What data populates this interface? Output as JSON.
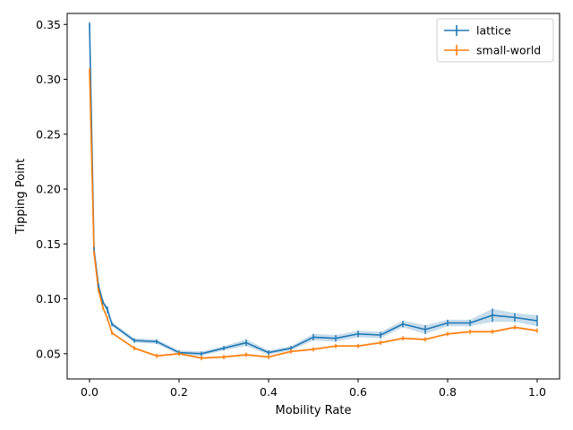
{
  "chart_data": {
    "type": "line",
    "xlabel": "Mobility Rate",
    "ylabel": "Tipping Point",
    "xlim": [
      -0.05,
      1.05
    ],
    "ylim": [
      0.027,
      0.36
    ],
    "xticks": [
      0.0,
      0.2,
      0.4,
      0.6,
      0.8,
      1.0
    ],
    "xtick_labels": [
      "0.0",
      "0.2",
      "0.4",
      "0.6",
      "0.8",
      "1.0"
    ],
    "yticks": [
      0.05,
      0.1,
      0.15,
      0.2,
      0.25,
      0.3,
      0.35
    ],
    "ytick_labels": [
      "0.05",
      "0.10",
      "0.15",
      "0.20",
      "0.25",
      "0.30",
      "0.35"
    ],
    "grid": false,
    "legend": "top-right",
    "x": [
      0.0,
      0.01,
      0.02,
      0.03,
      0.04,
      0.05,
      0.1,
      0.15,
      0.2,
      0.25,
      0.3,
      0.35,
      0.4,
      0.45,
      0.5,
      0.55,
      0.6,
      0.65,
      0.7,
      0.75,
      0.8,
      0.85,
      0.9,
      0.95,
      1.0
    ],
    "series": [
      {
        "name": "lattice",
        "color": "#1f77b4",
        "values": [
          0.35,
          0.145,
          0.112,
          0.097,
          0.09,
          0.077,
          0.062,
          0.061,
          0.051,
          0.05,
          0.055,
          0.06,
          0.051,
          0.055,
          0.065,
          0.064,
          0.068,
          0.067,
          0.077,
          0.072,
          0.078,
          0.078,
          0.085,
          0.083,
          0.08
        ],
        "errors": [
          0.0,
          0.001,
          0.001,
          0.001,
          0.003,
          0.002,
          0.002,
          0.002,
          0.002,
          0.002,
          0.002,
          0.003,
          0.002,
          0.002,
          0.003,
          0.003,
          0.003,
          0.003,
          0.003,
          0.004,
          0.003,
          0.003,
          0.006,
          0.004,
          0.005
        ]
      },
      {
        "name": "small-world",
        "color": "#ff7f0e",
        "values": [
          0.308,
          0.142,
          0.108,
          0.092,
          0.082,
          0.069,
          0.055,
          0.048,
          0.05,
          0.046,
          0.047,
          0.049,
          0.047,
          0.052,
          0.054,
          0.057,
          0.057,
          0.06,
          0.064,
          0.063,
          0.068,
          0.07,
          0.07,
          0.074,
          0.071
        ],
        "errors": [
          0.001,
          0.001,
          0.001,
          0.001,
          0.001,
          0.001,
          0.001,
          0.001,
          0.001,
          0.001,
          0.001,
          0.001,
          0.001,
          0.001,
          0.001,
          0.001,
          0.001,
          0.001,
          0.001,
          0.001,
          0.001,
          0.001,
          0.001,
          0.001,
          0.001
        ]
      }
    ]
  }
}
